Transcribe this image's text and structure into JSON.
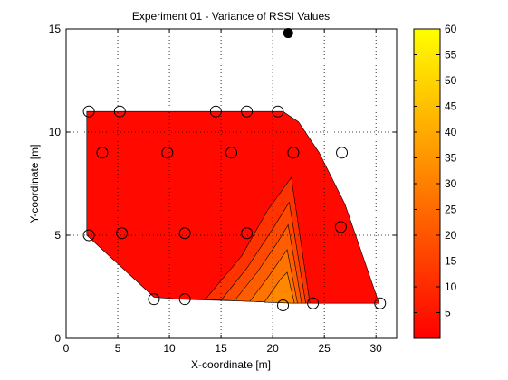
{
  "chart_data": {
    "type": "contour",
    "title": "Experiment 01 - Variance of RSSI Values",
    "xlabel": "X-coordinate [m]",
    "ylabel": "Y-coordinate [m]",
    "xlim": [
      0,
      32
    ],
    "ylim": [
      0,
      15
    ],
    "xticks": [
      "0",
      "5",
      "10",
      "15",
      "20",
      "25",
      "30"
    ],
    "yticks": [
      "0",
      "5",
      "10",
      "15"
    ],
    "grid": true,
    "colormap": "autumn",
    "colorbar": {
      "range": [
        0,
        60
      ],
      "ticks": [
        "5",
        "10",
        "15",
        "20",
        "25",
        "30",
        "35",
        "40",
        "45",
        "50",
        "55",
        "60"
      ],
      "low_color": "#ff0000",
      "high_color": "#ffff00"
    },
    "region_outline": [
      [
        2,
        11
      ],
      [
        21,
        11
      ],
      [
        22.5,
        10.5
      ],
      [
        24.5,
        9
      ],
      [
        27,
        6.5
      ],
      [
        30.3,
        1.7
      ],
      [
        24,
        1.7
      ],
      [
        11,
        1.9
      ],
      [
        8.5,
        2
      ],
      [
        2,
        5
      ]
    ],
    "contour_levels": [
      {
        "level": 10,
        "polygon": [
          [
            13.5,
            1.9
          ],
          [
            17,
            4
          ],
          [
            19.5,
            6.2
          ],
          [
            21.8,
            7.8
          ],
          [
            23.6,
            1.7
          ]
        ]
      },
      {
        "level": 15,
        "polygon": [
          [
            15,
            1.85
          ],
          [
            17.5,
            3.4
          ],
          [
            20,
            5.3
          ],
          [
            21.6,
            6.6
          ],
          [
            23.2,
            1.7
          ]
        ]
      },
      {
        "level": 20,
        "polygon": [
          [
            16.3,
            1.82
          ],
          [
            18.5,
            3.2
          ],
          [
            20.4,
            4.6
          ],
          [
            21.5,
            5.5
          ],
          [
            22.8,
            1.7
          ]
        ]
      },
      {
        "level": 25,
        "polygon": [
          [
            17.8,
            1.8
          ],
          [
            19.6,
            3
          ],
          [
            21.4,
            4.3
          ],
          [
            22.4,
            1.7
          ]
        ]
      },
      {
        "level": 30,
        "polygon": [
          [
            19.2,
            1.75
          ],
          [
            20.8,
            2.9
          ],
          [
            21.4,
            3.2
          ],
          [
            22.1,
            1.7
          ]
        ]
      }
    ],
    "measurement_points": [
      {
        "x": 2.2,
        "y": 11
      },
      {
        "x": 5.2,
        "y": 11
      },
      {
        "x": 14.5,
        "y": 11
      },
      {
        "x": 17.5,
        "y": 11
      },
      {
        "x": 20.5,
        "y": 11
      },
      {
        "x": 3.5,
        "y": 9
      },
      {
        "x": 9.8,
        "y": 9
      },
      {
        "x": 16,
        "y": 9
      },
      {
        "x": 22,
        "y": 9
      },
      {
        "x": 26.7,
        "y": 9
      },
      {
        "x": 2.2,
        "y": 5
      },
      {
        "x": 5.4,
        "y": 5.1
      },
      {
        "x": 11.5,
        "y": 5.1
      },
      {
        "x": 17.5,
        "y": 5.1
      },
      {
        "x": 26.6,
        "y": 5.4
      },
      {
        "x": 8.5,
        "y": 1.9
      },
      {
        "x": 11.5,
        "y": 1.9
      },
      {
        "x": 21,
        "y": 1.6
      },
      {
        "x": 23.9,
        "y": 1.7
      },
      {
        "x": 30.4,
        "y": 1.7
      }
    ],
    "access_point": {
      "x": 21.5,
      "y": 14.8
    }
  }
}
